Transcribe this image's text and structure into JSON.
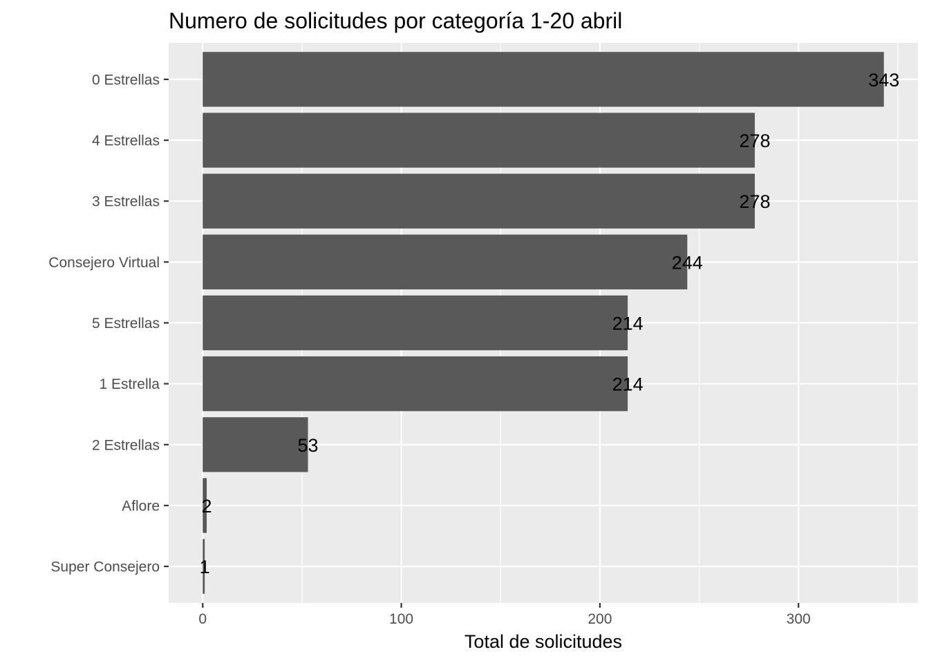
{
  "chart_data": {
    "type": "bar",
    "orientation": "horizontal",
    "title": "Numero de solicitudes por categoría 1-20 abril",
    "xlabel": "Total de solicitudes",
    "ylabel": "",
    "categories": [
      "0 Estrellas",
      "4 Estrellas",
      "3 Estrellas",
      "Consejero Virtual",
      "5 Estrellas",
      "1 Estrella",
      "2 Estrellas",
      "Aflore",
      "Super Consejero"
    ],
    "values": [
      343,
      278,
      278,
      244,
      214,
      214,
      53,
      2,
      1
    ],
    "data_labels": [
      "343",
      "278",
      "278",
      "244",
      "214",
      "214",
      "53",
      "2",
      "1"
    ],
    "xlim": [
      -17.15,
      360.15
    ],
    "x_ticks": [
      0,
      100,
      200,
      300
    ],
    "x_tick_labels": [
      "0",
      "100",
      "200",
      "300"
    ],
    "grid": true,
    "legend": "none",
    "colors": {
      "bar": "#595959",
      "panel_background": "#ebebeb",
      "gridline": "#ffffff"
    }
  }
}
